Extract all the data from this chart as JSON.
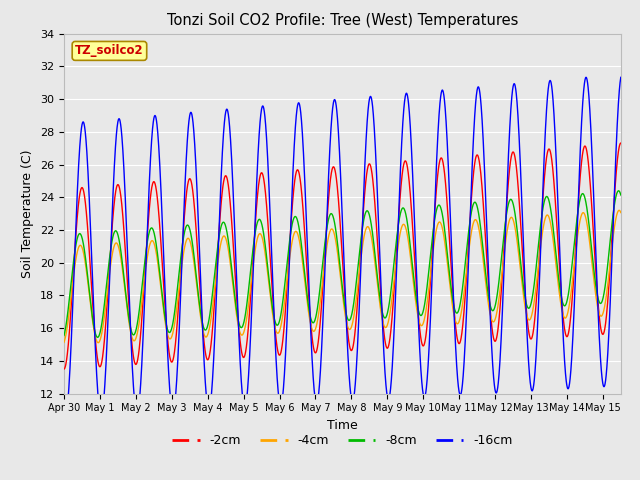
{
  "title": "Tonzi Soil CO2 Profile: Tree (West) Temperatures",
  "xlabel": "Time",
  "ylabel": "Soil Temperature (C)",
  "ylim": [
    12,
    34
  ],
  "xlim": [
    0,
    15.5
  ],
  "bg_color": "#e8e8e8",
  "grid_color": "#ffffff",
  "series": {
    "-2cm": {
      "color": "#ff0000",
      "amp": 5.5,
      "mean_s": 19.0,
      "mean_e": 21.5,
      "phase": 0.0,
      "amp_growth": 0.3
    },
    "-4cm": {
      "color": "#ffa500",
      "amp": 3.0,
      "mean_s": 18.0,
      "mean_e": 20.0,
      "phase": 0.3,
      "amp_growth": 0.2
    },
    "-8cm": {
      "color": "#00bb00",
      "amp": 3.2,
      "mean_s": 18.5,
      "mean_e": 21.0,
      "phase": 0.4,
      "amp_growth": 0.2
    },
    "-16cm": {
      "color": "#0000ff",
      "amp": 9.0,
      "mean_s": 19.5,
      "mean_e": 22.0,
      "phase": -0.2,
      "amp_growth": 0.5
    }
  },
  "x_tick_labels": [
    "Apr 30",
    "May 1",
    "May 2",
    "May 3",
    "May 4",
    "May 5",
    "May 6",
    "May 7",
    "May 8",
    "May 9",
    "May 10",
    "May 11",
    "May 12",
    "May 13",
    "May 14",
    "May 15"
  ],
  "x_tick_positions": [
    0,
    1,
    2,
    3,
    4,
    5,
    6,
    7,
    8,
    9,
    10,
    11,
    12,
    13,
    14,
    15
  ],
  "yticks": [
    12,
    14,
    16,
    18,
    20,
    22,
    24,
    26,
    28,
    30,
    32,
    34
  ],
  "annotation_text": "TZ_soilco2",
  "annotation_bg": "#ffff99",
  "annotation_border": "#aa8800",
  "annotation_color": "#cc0000",
  "legend_labels": [
    "-2cm",
    "-4cm",
    "-8cm",
    "-16cm"
  ],
  "legend_colors": [
    "#ff0000",
    "#ffa500",
    "#00bb00",
    "#0000ff"
  ]
}
